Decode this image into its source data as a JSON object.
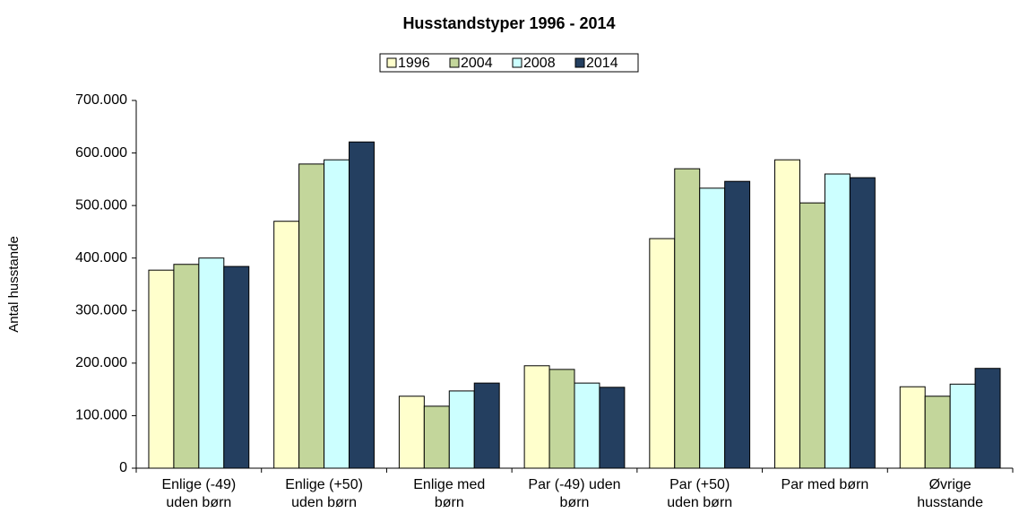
{
  "chart_data": {
    "type": "bar",
    "title": "Husstandstyper 1996 - 2014",
    "y_label": "Antal husstande",
    "categories": [
      "Enlige (-49)\nuden børn",
      "Enlige (+50)\nuden børn",
      "Enlige med\nbørn",
      "Par (-49) uden\nbørn",
      "Par (+50)\nuden børn",
      "Par med børn",
      "Øvrige\nhusstande"
    ],
    "series": [
      {
        "name": "1996",
        "color": "#FFFFCC",
        "values": [
          377000,
          470000,
          137000,
          195000,
          437000,
          587000,
          155000
        ]
      },
      {
        "name": "2004",
        "color": "#C3D69B",
        "values": [
          388000,
          579000,
          118000,
          188000,
          570000,
          505000,
          137000
        ]
      },
      {
        "name": "2008",
        "color": "#CCFFFF",
        "values": [
          400000,
          587000,
          147000,
          162000,
          533000,
          560000,
          160000
        ]
      },
      {
        "name": "2014",
        "color": "#243F60",
        "values": [
          384000,
          621000,
          162000,
          154000,
          546000,
          553000,
          190000
        ]
      }
    ],
    "ylim": [
      0,
      700000
    ],
    "yticks": [
      0,
      {
        "value": 100000,
        "label": "100.000"
      },
      {
        "value": 200000,
        "label": "200.000"
      },
      {
        "value": 300000,
        "label": "300.000"
      },
      {
        "value": 400000,
        "label": "400.000"
      },
      {
        "value": 500000,
        "label": "500.000"
      },
      {
        "value": 600000,
        "label": "600.000"
      },
      {
        "value": 700000,
        "label": "700.000"
      }
    ],
    "legend": "top",
    "grid": false
  }
}
